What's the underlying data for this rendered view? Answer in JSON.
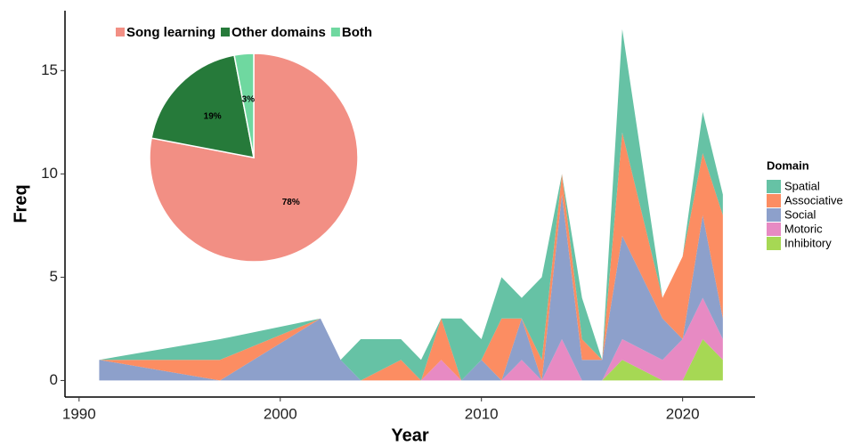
{
  "chart_data": [
    {
      "type": "stacked_area",
      "x_label": "Year",
      "y_label": "Freq",
      "x": [
        1991,
        1997,
        2002,
        2003,
        2004,
        2006,
        2007,
        2008,
        2009,
        2010,
        2011,
        2012,
        2013,
        2014,
        2015,
        2016,
        2017,
        2019,
        2020,
        2021,
        2022
      ],
      "series": [
        {
          "name": "Spatial",
          "color": "#66c2a5",
          "values": [
            0,
            1,
            0,
            0,
            2,
            1,
            1,
            0,
            3,
            1,
            2,
            1,
            4,
            0,
            2,
            0,
            5,
            0,
            0,
            2,
            1
          ]
        },
        {
          "name": "Associative",
          "color": "#fc8d62",
          "values": [
            0,
            1,
            0,
            0,
            0,
            1,
            0,
            2,
            0,
            0,
            3,
            0,
            1,
            1,
            1,
            0,
            5,
            1,
            4,
            3,
            5
          ]
        },
        {
          "name": "Social",
          "color": "#8da0cb",
          "values": [
            1,
            0,
            3,
            1,
            0,
            0,
            0,
            0,
            0,
            1,
            0,
            2,
            0,
            7,
            1,
            1,
            5,
            2,
            0,
            4,
            1
          ]
        },
        {
          "name": "Motoric",
          "color": "#e78ac3",
          "values": [
            0,
            0,
            0,
            0,
            0,
            0,
            0,
            1,
            0,
            0,
            0,
            1,
            0,
            2,
            0,
            0,
            1,
            1,
            2,
            2,
            1
          ]
        },
        {
          "name": "Inhibitory",
          "color": "#a6d854",
          "values": [
            0,
            0,
            0,
            0,
            0,
            0,
            0,
            0,
            0,
            0,
            0,
            0,
            0,
            0,
            0,
            0,
            1,
            0,
            0,
            2,
            1
          ]
        }
      ],
      "legend_title": "Domain",
      "legend": "right",
      "xlim": [
        1989.3,
        2023.6
      ],
      "xticks": [
        1990,
        2000,
        2010,
        2020
      ],
      "ylim": [
        -0.8,
        17.9
      ],
      "yticks": [
        0,
        5,
        10,
        15
      ]
    },
    {
      "type": "pie",
      "categories": [
        "Song learning",
        "Other domains",
        "Both"
      ],
      "values": [
        78,
        19,
        3
      ],
      "value_labels": [
        "78%",
        "19%",
        "3%"
      ],
      "colors": [
        "#f28f84",
        "#267a3a",
        "#6fd8a0"
      ],
      "legend": "top"
    }
  ]
}
